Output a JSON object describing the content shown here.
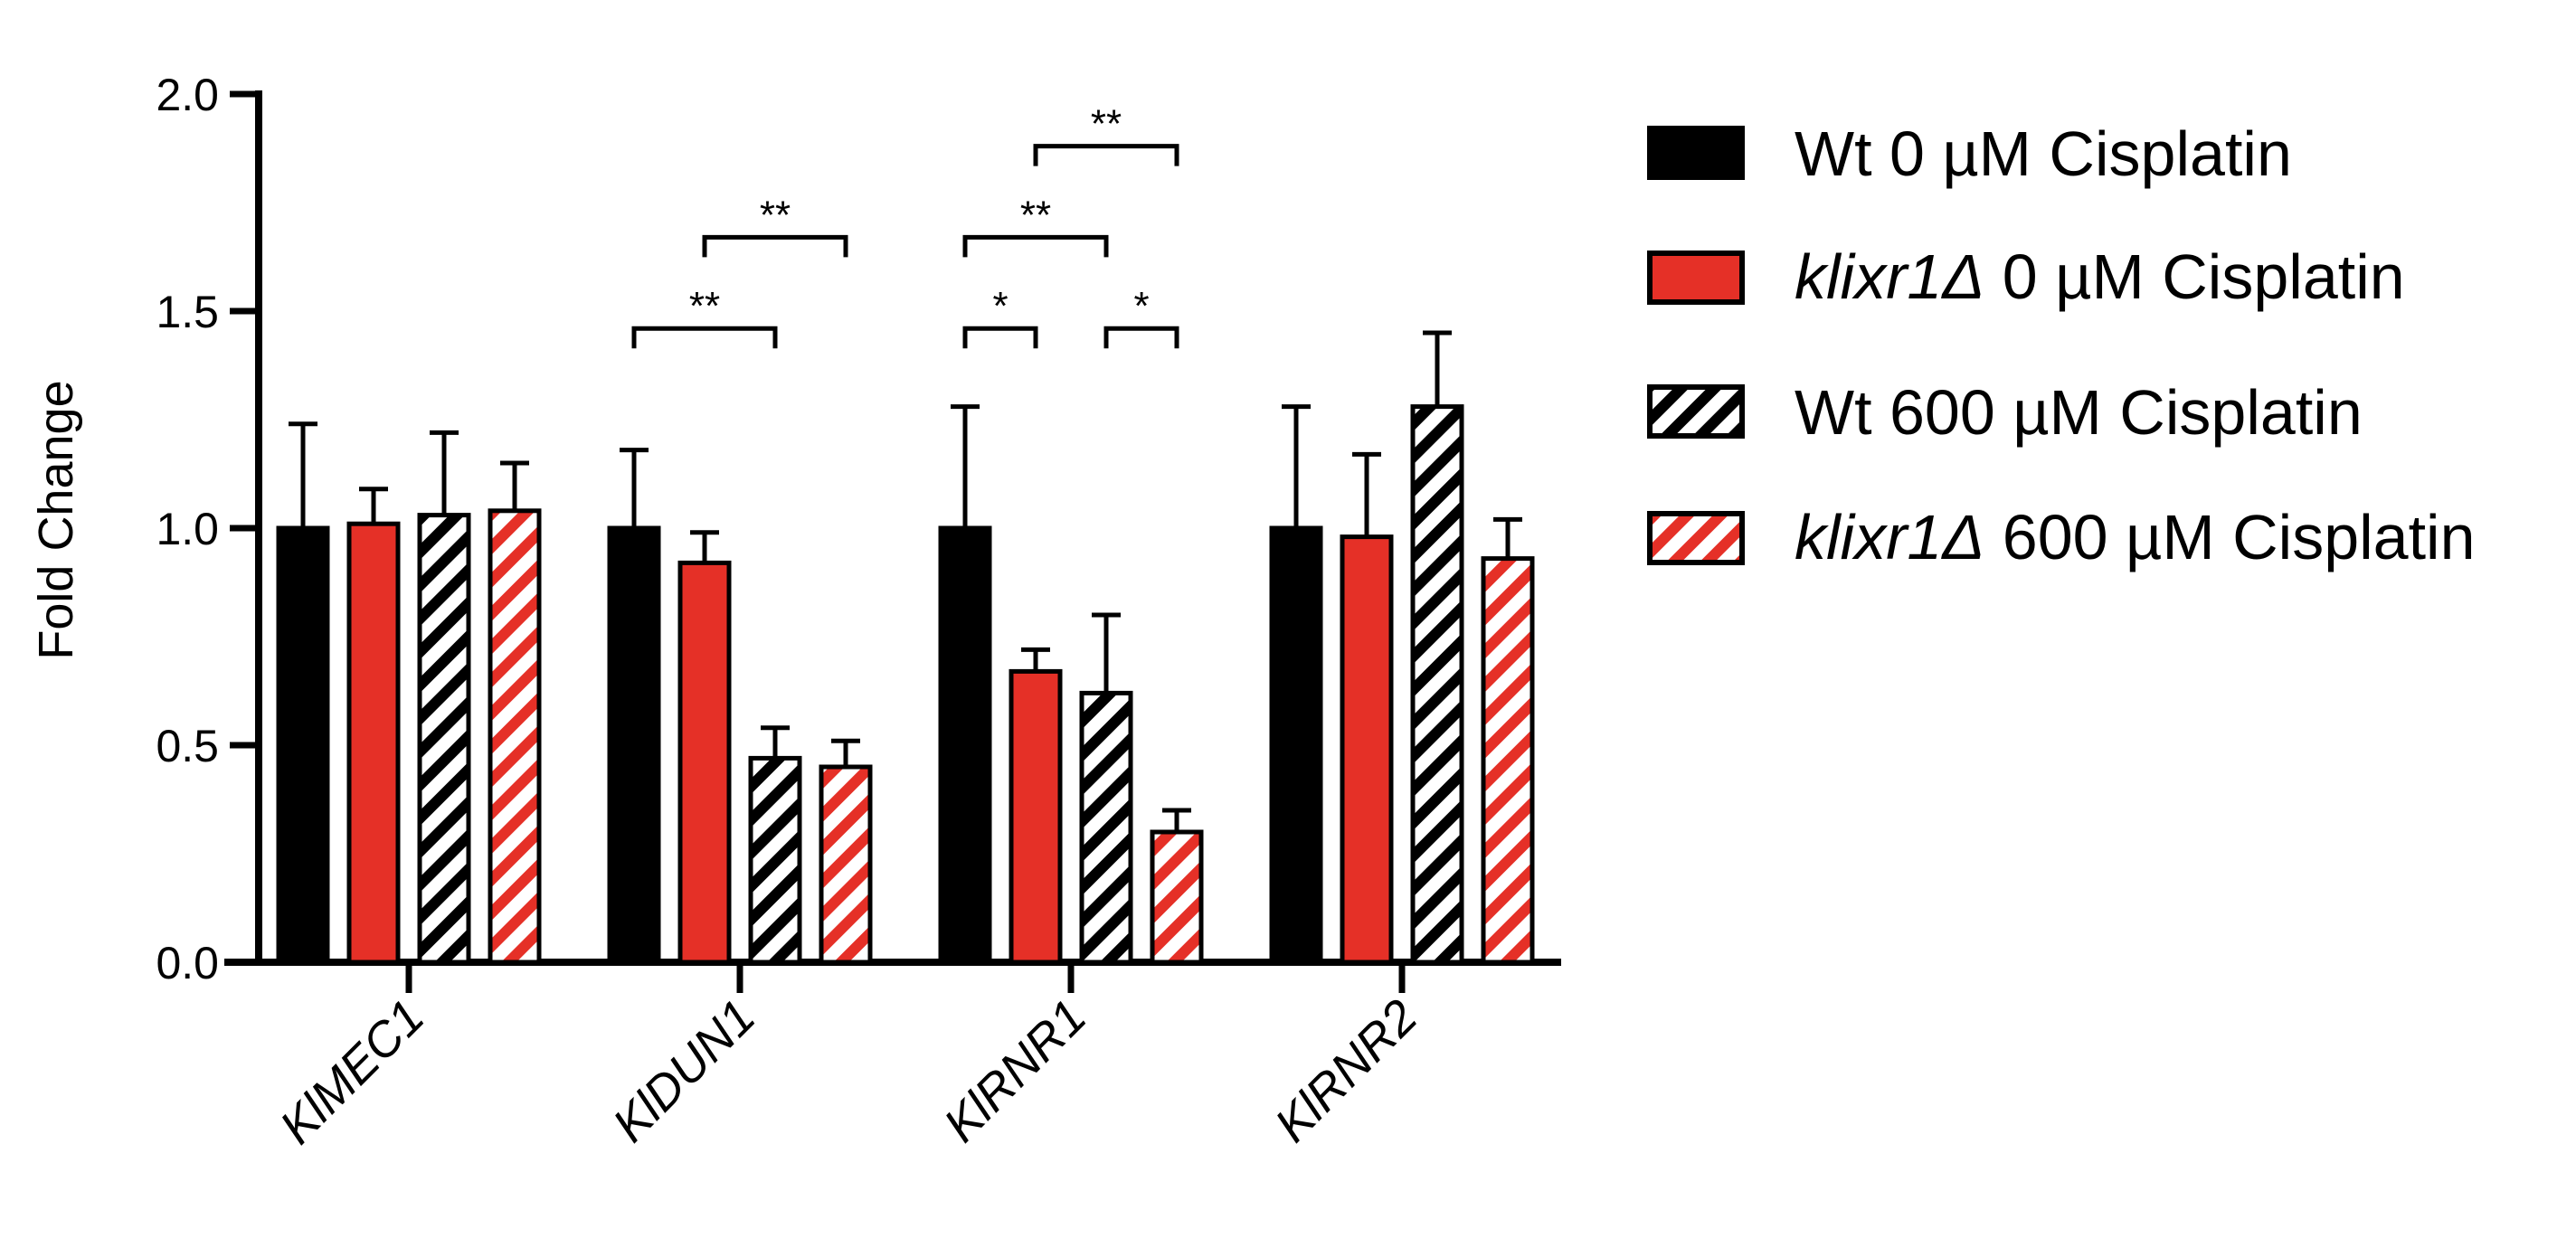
{
  "chart_data": {
    "type": "bar",
    "title": "",
    "xlabel": "",
    "ylabel": "Fold Change",
    "ylim": [
      0,
      2.0
    ],
    "yticks": [
      0.0,
      0.5,
      1.0,
      1.5,
      2.0
    ],
    "ytick_labels": [
      "0.0",
      "0.5",
      "1.0",
      "1.5",
      "2.0"
    ],
    "grid": false,
    "legend_position": "right",
    "categories": [
      "KlMEC1",
      "KlDUN1",
      "KlRNR1",
      "KlRNR2"
    ],
    "series": [
      {
        "name": "Wt 0 µM Cisplatin",
        "legend_label": {
          "italic": "",
          "rest": "Wt 0 µM Cisplatin"
        },
        "color": "#000000",
        "pattern": "solid",
        "values": [
          1.0,
          1.0,
          1.0,
          1.0
        ],
        "errors": [
          0.24,
          0.18,
          0.28,
          0.28
        ]
      },
      {
        "name": "klixr1Δ 0 µM Cisplatin",
        "legend_label": {
          "italic": "klixr1Δ",
          "rest": " 0 µM Cisplatin"
        },
        "color": "#e53027",
        "pattern": "solid",
        "values": [
          1.01,
          0.92,
          0.67,
          0.98
        ],
        "errors": [
          0.08,
          0.07,
          0.05,
          0.19
        ]
      },
      {
        "name": "Wt 600 µM Cisplatin",
        "legend_label": {
          "italic": "",
          "rest": "Wt 600 µM Cisplatin"
        },
        "color": "#000000",
        "pattern": "hatched",
        "values": [
          1.03,
          0.47,
          0.62,
          1.28
        ],
        "errors": [
          0.19,
          0.07,
          0.18,
          0.17
        ]
      },
      {
        "name": "klixr1Δ 600 µM Cisplatin",
        "legend_label": {
          "italic": "klixr1Δ",
          "rest": " 600 µM Cisplatin"
        },
        "color": "#e53027",
        "pattern": "hatched",
        "values": [
          1.04,
          0.45,
          0.3,
          0.93
        ],
        "errors": [
          0.11,
          0.06,
          0.05,
          0.09
        ]
      }
    ],
    "annotations": [
      {
        "category": 1,
        "from_series": 0,
        "to_series": 2,
        "y": 1.46,
        "text": "**"
      },
      {
        "category": 1,
        "from_series": 1,
        "to_series": 3,
        "y": 1.67,
        "text": "**"
      },
      {
        "category": 2,
        "from_series": 0,
        "to_series": 1,
        "y": 1.46,
        "text": "*"
      },
      {
        "category": 2,
        "from_series": 2,
        "to_series": 3,
        "y": 1.46,
        "text": "*"
      },
      {
        "category": 2,
        "from_series": 0,
        "to_series": 2,
        "y": 1.67,
        "text": "**"
      },
      {
        "category": 2,
        "from_series": 1,
        "to_series": 3,
        "y": 1.88,
        "text": "**"
      }
    ]
  }
}
